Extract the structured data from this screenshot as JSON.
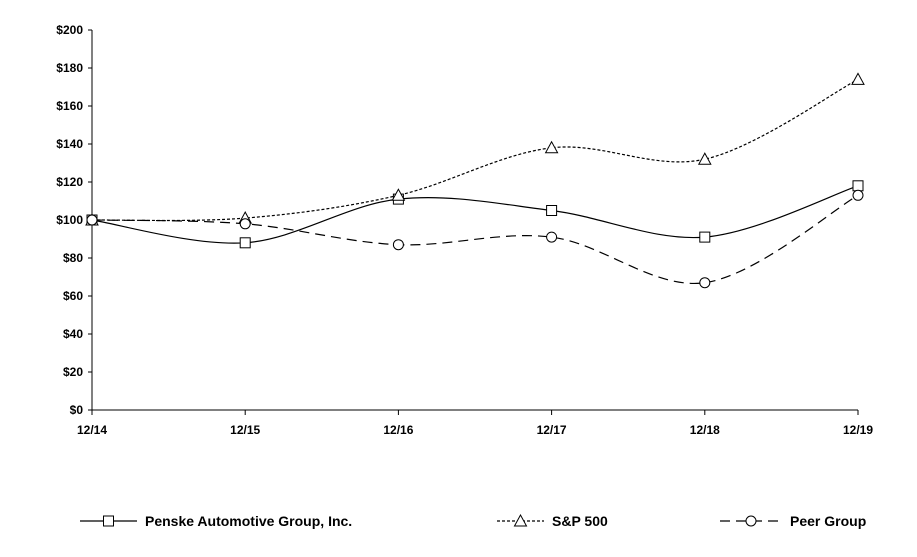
{
  "chart_data": {
    "type": "line",
    "title": "",
    "xlabel": "",
    "ylabel": "",
    "categories": [
      "12/14",
      "12/15",
      "12/16",
      "12/17",
      "12/18",
      "12/19"
    ],
    "ylim": [
      0,
      200
    ],
    "yticks": [
      0,
      20,
      40,
      60,
      80,
      100,
      120,
      140,
      160,
      180,
      200
    ],
    "ytick_labels": [
      "$0",
      "$20",
      "$40",
      "$60",
      "$80",
      "$100",
      "$120",
      "$140",
      "$160",
      "$180",
      "$200"
    ],
    "grid": false,
    "legend_position": "bottom",
    "series": [
      {
        "name": "Penske Automotive Group, Inc.",
        "values": [
          100,
          88,
          111,
          105,
          91,
          118
        ],
        "marker": "square",
        "line_style": "solid",
        "color": "#000000"
      },
      {
        "name": "S&P 500",
        "values": [
          100,
          101,
          113,
          138,
          132,
          174
        ],
        "marker": "triangle",
        "line_style": "dotted",
        "color": "#000000"
      },
      {
        "name": "Peer Group",
        "values": [
          100,
          98,
          87,
          91,
          67,
          113
        ],
        "marker": "circle",
        "line_style": "dashed",
        "color": "#000000"
      }
    ]
  }
}
